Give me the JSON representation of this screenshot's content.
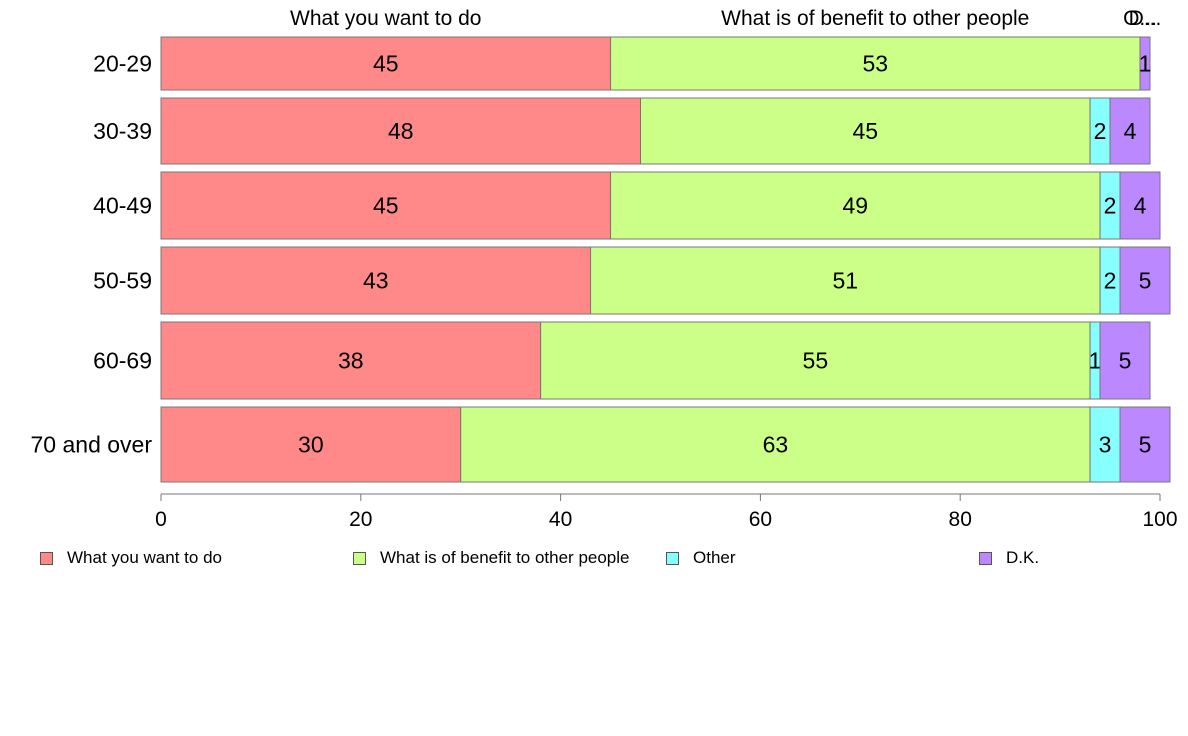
{
  "chart_data": {
    "type": "bar",
    "orientation": "horizontal",
    "stacked": true,
    "categories": [
      "20-29",
      "30-39",
      "40-49",
      "50-59",
      "60-69",
      "70 and over"
    ],
    "series": [
      {
        "name": "What you want to do",
        "color": "#FF8888",
        "values": [
          45,
          48,
          45,
          43,
          38,
          30
        ]
      },
      {
        "name": "What is of benefit to other people",
        "color": "#CCFF88",
        "values": [
          53,
          45,
          49,
          51,
          55,
          63
        ]
      },
      {
        "name": "Other",
        "color": "#88FFFF",
        "values": [
          0,
          2,
          2,
          2,
          1,
          3
        ]
      },
      {
        "name": "D.K.",
        "color": "#BB88FF",
        "values": [
          1,
          4,
          4,
          5,
          5,
          5
        ]
      }
    ],
    "data_labels": [
      [
        "45",
        "53",
        "",
        "1"
      ],
      [
        "48",
        "45",
        "2",
        "4"
      ],
      [
        "45",
        "49",
        "2",
        "4"
      ],
      [
        "43",
        "51",
        "2",
        "5"
      ],
      [
        "38",
        "55",
        "1",
        "5"
      ],
      [
        "30",
        "63",
        "3",
        "5"
      ]
    ],
    "top_labels": [
      "What you want to do",
      "What is of benefit to other people",
      "O...",
      "D..."
    ],
    "xlim": [
      0,
      100
    ],
    "xticks": [
      "0",
      "20",
      "40",
      "60",
      "80",
      "100"
    ],
    "grid": false,
    "legend_position": "bottom"
  }
}
